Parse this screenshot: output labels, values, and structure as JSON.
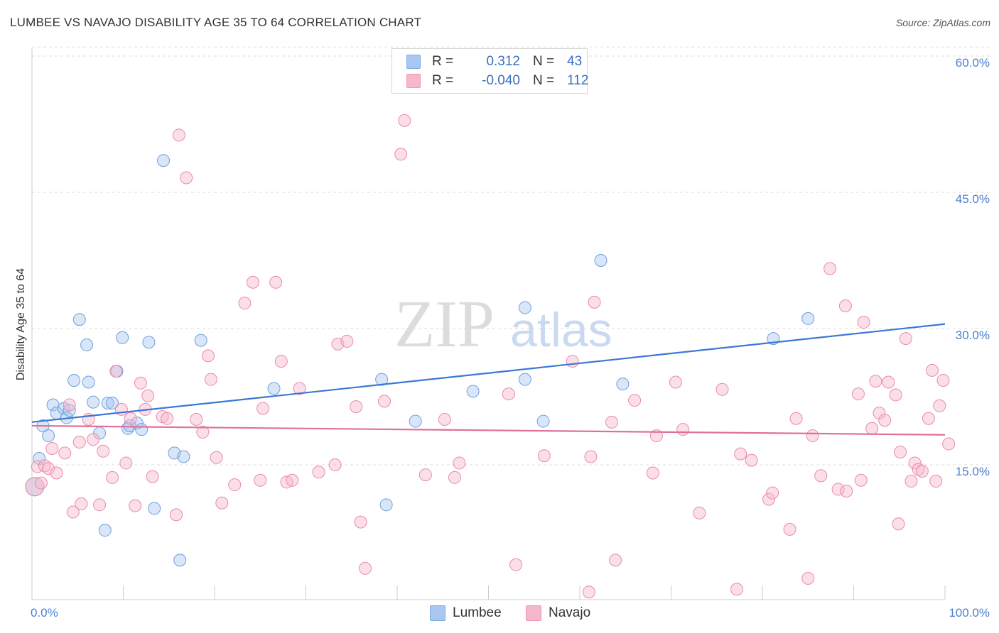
{
  "header": {
    "title": "LUMBEE VS NAVAJO DISABILITY AGE 35 TO 64 CORRELATION CHART",
    "source": "Source: ZipAtlas.com"
  },
  "watermark": {
    "zip": "ZIP",
    "atlas": "atlas"
  },
  "legend": {
    "rows": [
      {
        "r_label": "R =",
        "r_value": "0.312",
        "n_label": "N =",
        "n_value": "43",
        "color": "#a9c8f0"
      },
      {
        "r_label": "R =",
        "r_value": "-0.040",
        "n_label": "N =",
        "n_value": "112",
        "color": "#f7b7cb"
      }
    ]
  },
  "chart_data": {
    "type": "scatter",
    "xlabel": "",
    "ylabel": "Disability Age 35 to 64",
    "xlim": [
      0,
      100
    ],
    "ylim": [
      0,
      61
    ],
    "x_tick_labels": [
      "0.0%",
      "100.0%"
    ],
    "y_ticks": [
      {
        "value": 15,
        "label": "15.0%"
      },
      {
        "value": 30,
        "label": "30.0%"
      },
      {
        "value": 45,
        "label": "45.0%"
      },
      {
        "value": 60,
        "label": "60.0%"
      }
    ],
    "grid": "horizontal-dashed",
    "legend_position": "top-center",
    "series": [
      {
        "name": "Lumbee",
        "color": "#a9c8f0",
        "stroke": "#6d9fe0",
        "trend": {
          "x0": 0,
          "y0": 19.7,
          "x1": 100,
          "y1": 30.5,
          "color": "#3a78d4"
        },
        "points": [
          [
            0.3,
            12.6
          ],
          [
            0.8,
            15.7
          ],
          [
            1.2,
            19.3
          ],
          [
            1.8,
            18.2
          ],
          [
            2.3,
            21.6
          ],
          [
            2.7,
            20.7
          ],
          [
            3.5,
            21.2
          ],
          [
            3.8,
            20.2
          ],
          [
            4.1,
            21.0
          ],
          [
            4.6,
            24.3
          ],
          [
            5.2,
            31.0
          ],
          [
            6.0,
            28.2
          ],
          [
            6.2,
            24.1
          ],
          [
            6.7,
            21.9
          ],
          [
            7.4,
            18.5
          ],
          [
            8.0,
            7.8
          ],
          [
            8.3,
            21.8
          ],
          [
            8.8,
            21.8
          ],
          [
            9.3,
            25.3
          ],
          [
            9.9,
            29.0
          ],
          [
            10.5,
            19.0
          ],
          [
            10.7,
            19.3
          ],
          [
            11.5,
            19.6
          ],
          [
            12.0,
            18.9
          ],
          [
            12.8,
            28.5
          ],
          [
            13.4,
            10.2
          ],
          [
            14.4,
            48.5
          ],
          [
            15.6,
            16.3
          ],
          [
            16.2,
            4.5
          ],
          [
            16.6,
            15.9
          ],
          [
            18.5,
            28.7
          ],
          [
            26.5,
            23.4
          ],
          [
            38.3,
            24.4
          ],
          [
            38.8,
            10.6
          ],
          [
            42.0,
            19.8
          ],
          [
            48.3,
            23.1
          ],
          [
            54.0,
            32.3
          ],
          [
            54.0,
            24.4
          ],
          [
            56.0,
            19.8
          ],
          [
            62.3,
            37.5
          ],
          [
            64.7,
            23.9
          ],
          [
            81.2,
            28.9
          ],
          [
            85.0,
            31.1
          ]
        ]
      },
      {
        "name": "Navajo",
        "color": "#f7b7cb",
        "stroke": "#ea8aaa",
        "trend": {
          "x0": 0,
          "y0": 19.3,
          "x1": 100,
          "y1": 18.3,
          "color": "#e0709a"
        },
        "points": [
          [
            0.3,
            12.6
          ],
          [
            0.6,
            14.8
          ],
          [
            1.0,
            13.0
          ],
          [
            1.4,
            14.9
          ],
          [
            1.8,
            14.6
          ],
          [
            2.2,
            16.8
          ],
          [
            2.7,
            14.1
          ],
          [
            3.6,
            16.3
          ],
          [
            4.1,
            21.6
          ],
          [
            4.5,
            9.8
          ],
          [
            5.2,
            17.5
          ],
          [
            5.4,
            10.7
          ],
          [
            6.2,
            20.0
          ],
          [
            6.7,
            17.8
          ],
          [
            7.4,
            10.6
          ],
          [
            7.8,
            16.5
          ],
          [
            8.8,
            13.6
          ],
          [
            9.2,
            25.3
          ],
          [
            9.8,
            21.1
          ],
          [
            10.3,
            15.2
          ],
          [
            10.8,
            20.1
          ],
          [
            11.3,
            10.5
          ],
          [
            11.9,
            24.0
          ],
          [
            12.4,
            21.1
          ],
          [
            12.7,
            22.6
          ],
          [
            13.2,
            13.7
          ],
          [
            14.3,
            20.3
          ],
          [
            14.8,
            20.1
          ],
          [
            15.8,
            9.5
          ],
          [
            16.1,
            51.3
          ],
          [
            16.9,
            46.6
          ],
          [
            18.0,
            20.0
          ],
          [
            18.7,
            18.6
          ],
          [
            19.3,
            27.0
          ],
          [
            19.6,
            24.4
          ],
          [
            20.2,
            15.8
          ],
          [
            20.8,
            10.8
          ],
          [
            22.2,
            12.8
          ],
          [
            23.3,
            32.8
          ],
          [
            24.2,
            35.1
          ],
          [
            25.0,
            13.3
          ],
          [
            25.3,
            21.2
          ],
          [
            26.7,
            35.1
          ],
          [
            27.3,
            26.4
          ],
          [
            27.9,
            13.1
          ],
          [
            28.5,
            13.3
          ],
          [
            29.3,
            23.4
          ],
          [
            31.4,
            14.2
          ],
          [
            33.2,
            15.0
          ],
          [
            33.5,
            28.3
          ],
          [
            34.5,
            28.6
          ],
          [
            35.5,
            21.4
          ],
          [
            36.0,
            8.7
          ],
          [
            36.5,
            3.6
          ],
          [
            38.6,
            22.0
          ],
          [
            40.4,
            49.2
          ],
          [
            40.8,
            52.9
          ],
          [
            43.1,
            13.9
          ],
          [
            45.2,
            20.0
          ],
          [
            46.3,
            13.6
          ],
          [
            46.8,
            15.2
          ],
          [
            52.2,
            22.8
          ],
          [
            53.0,
            4.0
          ],
          [
            56.1,
            16.0
          ],
          [
            59.2,
            26.4
          ],
          [
            61.0,
            1.0
          ],
          [
            61.2,
            15.9
          ],
          [
            61.6,
            32.9
          ],
          [
            63.5,
            19.7
          ],
          [
            63.9,
            4.5
          ],
          [
            66.0,
            22.1
          ],
          [
            68.0,
            14.1
          ],
          [
            68.4,
            18.2
          ],
          [
            70.5,
            24.1
          ],
          [
            71.3,
            18.9
          ],
          [
            73.1,
            9.7
          ],
          [
            75.6,
            23.3
          ],
          [
            77.2,
            1.3
          ],
          [
            77.6,
            16.2
          ],
          [
            78.8,
            15.5
          ],
          [
            80.7,
            11.2
          ],
          [
            81.1,
            11.9
          ],
          [
            83.0,
            7.9
          ],
          [
            83.7,
            20.1
          ],
          [
            85.0,
            2.5
          ],
          [
            85.5,
            18.2
          ],
          [
            86.4,
            13.8
          ],
          [
            87.4,
            36.6
          ],
          [
            88.3,
            12.3
          ],
          [
            89.1,
            32.5
          ],
          [
            89.2,
            12.1
          ],
          [
            90.5,
            22.8
          ],
          [
            90.8,
            13.3
          ],
          [
            91.1,
            30.7
          ],
          [
            92.0,
            19.0
          ],
          [
            92.4,
            24.2
          ],
          [
            92.8,
            20.7
          ],
          [
            93.4,
            19.9
          ],
          [
            93.8,
            24.1
          ],
          [
            94.6,
            22.7
          ],
          [
            94.9,
            8.5
          ],
          [
            95.1,
            16.4
          ],
          [
            95.7,
            28.9
          ],
          [
            96.3,
            13.2
          ],
          [
            96.7,
            15.2
          ],
          [
            97.1,
            14.5
          ],
          [
            97.5,
            14.3
          ],
          [
            98.2,
            20.1
          ],
          [
            98.6,
            25.4
          ],
          [
            99.0,
            13.2
          ],
          [
            99.4,
            21.5
          ],
          [
            99.8,
            24.3
          ],
          [
            100.4,
            17.3
          ]
        ]
      }
    ]
  },
  "bottom_legend": [
    {
      "label": "Lumbee",
      "color": "#a9c8f0"
    },
    {
      "label": "Navajo",
      "color": "#f7b7cb"
    }
  ]
}
